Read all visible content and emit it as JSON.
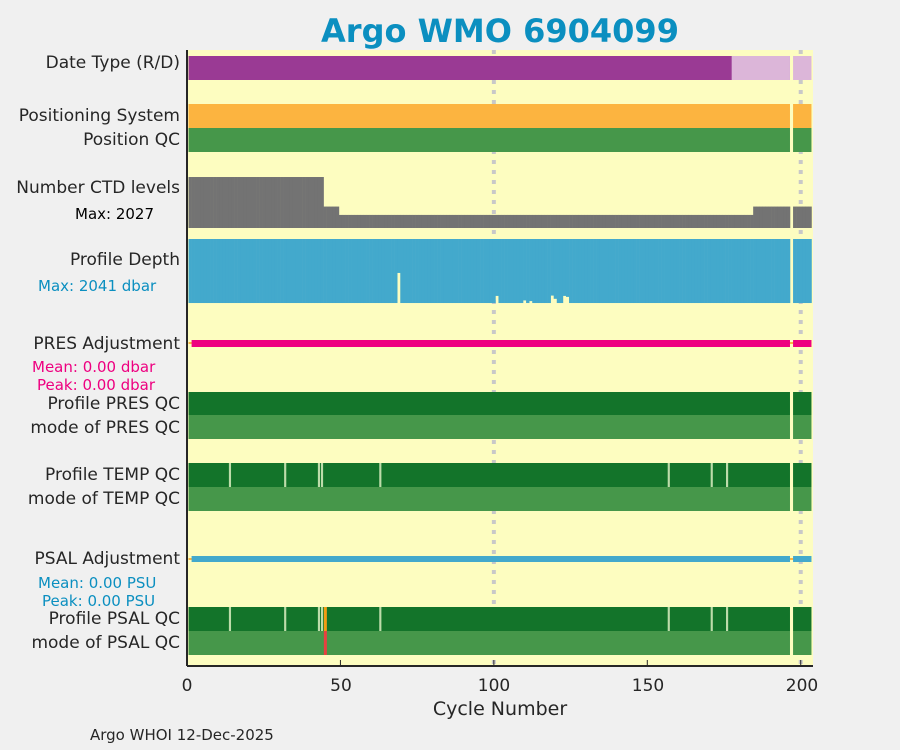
{
  "chart_data": {
    "type": "timeline",
    "title": "Argo WMO 6904099",
    "xlabel": "Cycle Number",
    "xlim": [
      0,
      204
    ],
    "xticks": [
      0,
      50,
      100,
      150,
      200
    ],
    "grid_x": [
      100,
      200
    ],
    "missing_cycles": [
      197
    ],
    "labels": {
      "date_type": "Date Type (R/D)",
      "positioning": "Positioning System",
      "position_qc": "Position QC",
      "ctd": "Number CTD levels",
      "ctd_max": "Max: 2027",
      "depth": "Profile Depth",
      "depth_max": "Max: 2041 dbar",
      "pres_adj": "PRES Adjustment",
      "pres_mean": "Mean: 0.00 dbar",
      "pres_peak": "Peak: 0.00 dbar",
      "pres_qc": "Profile PRES QC",
      "pres_mode": "mode of PRES QC",
      "temp_qc": "Profile TEMP QC",
      "temp_mode": "mode of TEMP QC",
      "psal_adj": "PSAL Adjustment",
      "psal_mean": "Mean: 0.00 PSU",
      "psal_peak": "Peak: 0.00 PSU",
      "psal_qc": "Profile PSAL QC",
      "psal_mode": "mode of PSAL QC"
    },
    "date_type": {
      "D": [
        1,
        177
      ],
      "R": [
        178,
        203
      ]
    },
    "ctd_levels": {
      "max": 2027,
      "segments": [
        [
          1,
          44,
          1950
        ],
        [
          45,
          49,
          820
        ],
        [
          50,
          184,
          500
        ],
        [
          185,
          203,
          820
        ]
      ]
    },
    "profile_depth": {
      "max": 2041,
      "default": 1980,
      "exceptions": {
        "69": 1050,
        "101": 1760,
        "119": 1750,
        "120": 1850,
        "123": 1760,
        "124": 1790,
        "110": 1900,
        "112": 1920
      }
    },
    "pres_adjustment": {
      "mean": 0.0,
      "peak": 0.0
    },
    "psal_adjustment": {
      "mean": 0.0,
      "peak": 0.0
    },
    "temp_qc_flagged_cycles": [
      14,
      32,
      43,
      44,
      63,
      157,
      171,
      176
    ],
    "psal_qc_flagged_cycles": [
      14,
      32,
      43,
      44,
      63,
      157,
      171,
      176
    ],
    "psal_qc_bad_cycle": 45,
    "footer": "Argo WHOI 12-Dec-2025",
    "colors": {
      "background": "#fdfdc0",
      "date_D": "#9a3a94",
      "date_R": "#dcb6d9",
      "positioning": "#fcb440",
      "qc_good_light": "#46974a",
      "qc_good_dark": "#13742a",
      "qc_flag": "#bddcaa",
      "ctd": "#737373",
      "depth": "#43a9cc",
      "pres": "#ee0080",
      "psal": "#43a9cc",
      "orange": "#f39c12",
      "red": "#e84040",
      "grid": "#c8c8c8"
    }
  }
}
